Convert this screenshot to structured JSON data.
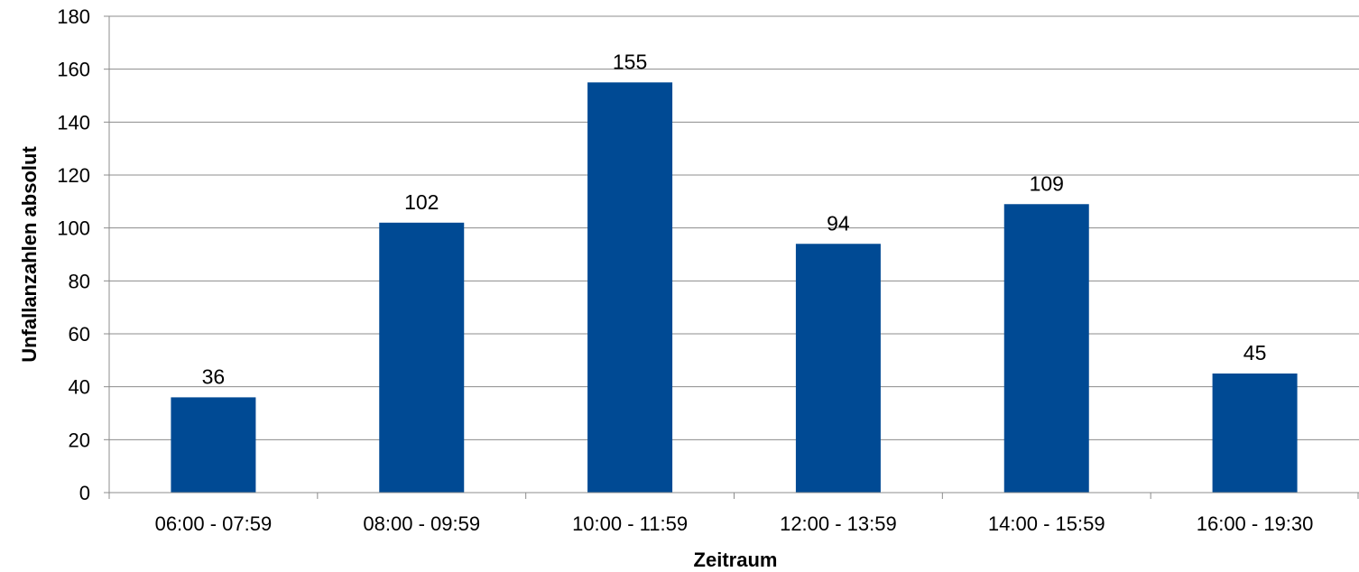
{
  "chart_data": {
    "type": "bar",
    "categories": [
      "06:00 - 07:59",
      "08:00 - 09:59",
      "10:00 - 11:59",
      "12:00 - 13:59",
      "14:00 - 15:59",
      "16:00 - 19:30"
    ],
    "values": [
      36,
      102,
      155,
      94,
      109,
      45
    ],
    "data_labels": [
      "36",
      "102",
      "155",
      "94",
      "109",
      "45"
    ],
    "xlabel": "Zeitraum",
    "ylabel": "Unfallanzahlen absolut",
    "ylim": [
      0,
      180
    ],
    "yticks": [
      "0",
      "20",
      "40",
      "60",
      "80",
      "100",
      "120",
      "140",
      "160",
      "180"
    ],
    "ytick_values": [
      0,
      20,
      40,
      60,
      80,
      100,
      120,
      140,
      160,
      180
    ],
    "grid": true,
    "bar_color": "#004A94"
  }
}
